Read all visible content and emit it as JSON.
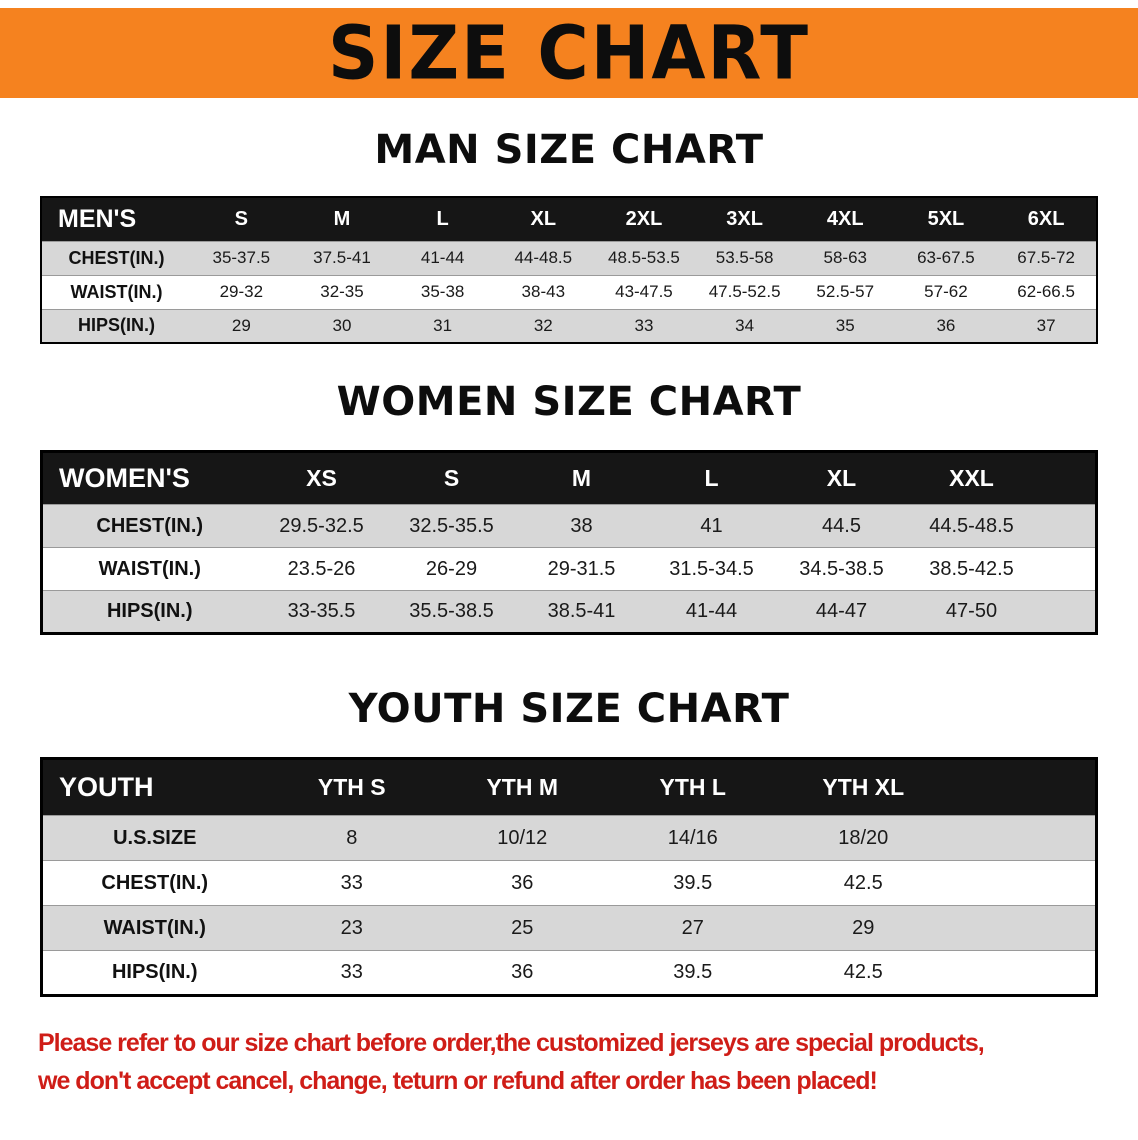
{
  "banner": {
    "title": "SIZE CHART"
  },
  "sections": [
    {
      "heading": "MAN SIZE CHART",
      "table": {
        "header": [
          "MEN'S",
          "S",
          "M",
          "L",
          "XL",
          "2XL",
          "3XL",
          "4XL",
          "5XL",
          "6XL"
        ],
        "rows": [
          [
            "CHEST(IN.)",
            "35-37.5",
            "37.5-41",
            "41-44",
            "44-48.5",
            "48.5-53.5",
            "53.5-58",
            "58-63",
            "63-67.5",
            "67.5-72"
          ],
          [
            "WAIST(IN.)",
            "29-32",
            "32-35",
            "35-38",
            "38-43",
            "43-47.5",
            "47.5-52.5",
            "52.5-57",
            "57-62",
            "62-66.5"
          ],
          [
            "HIPS(IN.)",
            "29",
            "30",
            "31",
            "32",
            "33",
            "34",
            "35",
            "36",
            "37"
          ]
        ]
      }
    },
    {
      "heading": "WOMEN SIZE CHART",
      "table": {
        "header": [
          "WOMEN'S",
          "XS",
          "S",
          "M",
          "L",
          "XL",
          "XXL"
        ],
        "rows": [
          [
            "CHEST(IN.)",
            "29.5-32.5",
            "32.5-35.5",
            "38",
            "41",
            "44.5",
            "44.5-48.5"
          ],
          [
            "WAIST(IN.)",
            "23.5-26",
            "26-29",
            "29-31.5",
            "31.5-34.5",
            "34.5-38.5",
            "38.5-42.5"
          ],
          [
            "HIPS(IN.)",
            "33-35.5",
            "35.5-38.5",
            "38.5-41",
            "41-44",
            "44-47",
            "47-50"
          ]
        ]
      }
    },
    {
      "heading": "YOUTH SIZE CHART",
      "table": {
        "header": [
          "YOUTH",
          "YTH S",
          "YTH M",
          "YTH L",
          "YTH XL"
        ],
        "rows": [
          [
            "U.S.SIZE",
            "8",
            "10/12",
            "14/16",
            "18/20"
          ],
          [
            "CHEST(IN.)",
            "33",
            "36",
            "39.5",
            "42.5"
          ],
          [
            "WAIST(IN.)",
            "23",
            "25",
            "27",
            "29"
          ],
          [
            "HIPS(IN.)",
            "33",
            "36",
            "39.5",
            "42.5"
          ]
        ]
      }
    }
  ],
  "note": {
    "line1": "Please refer to our size chart before order,the customized jerseys are special products,",
    "line2": "we don't accept cancel, change, teturn or refund after order has been placed!"
  },
  "colors": {
    "banner_bg": "#f5821f",
    "header_bg": "#161616",
    "row_shade": "#d7d7d7",
    "note_red": "#cf1d17"
  }
}
